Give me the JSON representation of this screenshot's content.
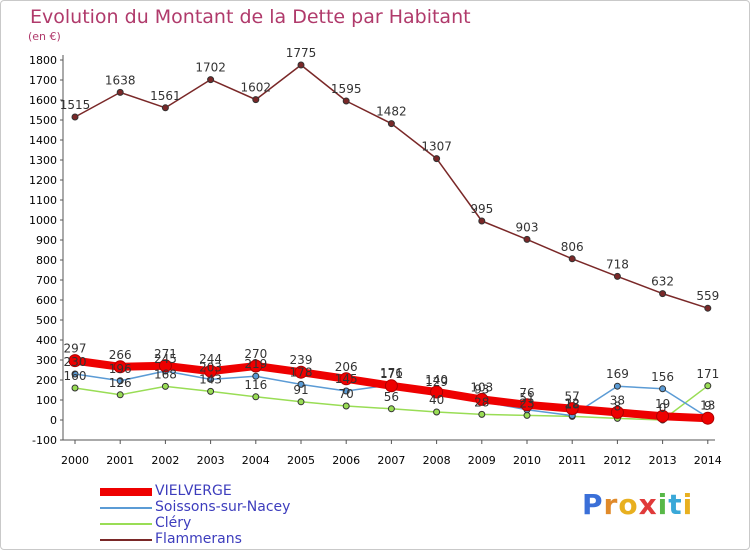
{
  "chart_data": {
    "type": "line",
    "title": "Evolution du Montant de la Dette par Habitant",
    "unit_label": "(en €)",
    "x": [
      "2000",
      "2001",
      "2002",
      "2003",
      "2004",
      "2005",
      "2006",
      "2007",
      "2008",
      "2009",
      "2010",
      "2011",
      "2012",
      "2013",
      "2014"
    ],
    "ylim": [
      -100,
      1800
    ],
    "y_ticks": [
      -100,
      0,
      100,
      200,
      300,
      400,
      500,
      600,
      700,
      800,
      900,
      1000,
      1100,
      1200,
      1300,
      1400,
      1500,
      1600,
      1700,
      1800
    ],
    "grid": false,
    "legend_position": "bottom-left",
    "series": [
      {
        "name": "VIELVERGE",
        "color": "#ee0000",
        "values": [
          297,
          266,
          271,
          244,
          270,
          239,
          206,
          171,
          140,
          103,
          76,
          57,
          38,
          19,
          9
        ],
        "labels": [
          "297",
          "266",
          "271",
          "244",
          "270",
          "239",
          "206",
          "171",
          "140",
          "103",
          "76",
          "57",
          "38",
          "19",
          "9"
        ]
      },
      {
        "name": "Soissons-sur-Nacey",
        "color": "#5b9bd5",
        "values": [
          230,
          196,
          245,
          203,
          219,
          178,
          145,
          176,
          129,
          93,
          51,
          22,
          169,
          156,
          13
        ],
        "labels": [
          "230",
          "196",
          "245",
          "203",
          "219",
          "178",
          "145",
          "176",
          "129",
          "93",
          "51",
          "22",
          "169",
          "156",
          "13"
        ]
      },
      {
        "name": "Cléry",
        "color": "#99dd55",
        "values": [
          160,
          126,
          168,
          143,
          116,
          91,
          70,
          56,
          40,
          28,
          23,
          18,
          8,
          0,
          171
        ],
        "labels": [
          "160",
          "126",
          "168",
          "143",
          "116",
          "91",
          "70",
          "56",
          "40",
          "28",
          "23",
          "18",
          "8",
          "0",
          "171"
        ]
      },
      {
        "name": "Flammerans",
        "color": "#7a2828",
        "values": [
          1515,
          1638,
          1561,
          1702,
          1602,
          1775,
          1595,
          1482,
          1307,
          995,
          903,
          806,
          718,
          632,
          559
        ],
        "labels": [
          "1515",
          "1638",
          "1561",
          "1702",
          "1602",
          "1775",
          "1595",
          "1482",
          "1307",
          "995",
          "903",
          "806",
          "718",
          "632",
          "559"
        ]
      }
    ]
  },
  "legend": {
    "items": [
      "VIELVERGE",
      "Soissons-sur-Nacey",
      "Cléry",
      "Flammerans"
    ]
  },
  "branding": {
    "letters": [
      "P",
      "r",
      "o",
      "x",
      "i",
      "t",
      "i"
    ],
    "colors": [
      "#3a6fd8",
      "#e08a2a",
      "#e8b020",
      "#e03a3a",
      "#58b848",
      "#3aa8d8",
      "#e8b020"
    ]
  }
}
